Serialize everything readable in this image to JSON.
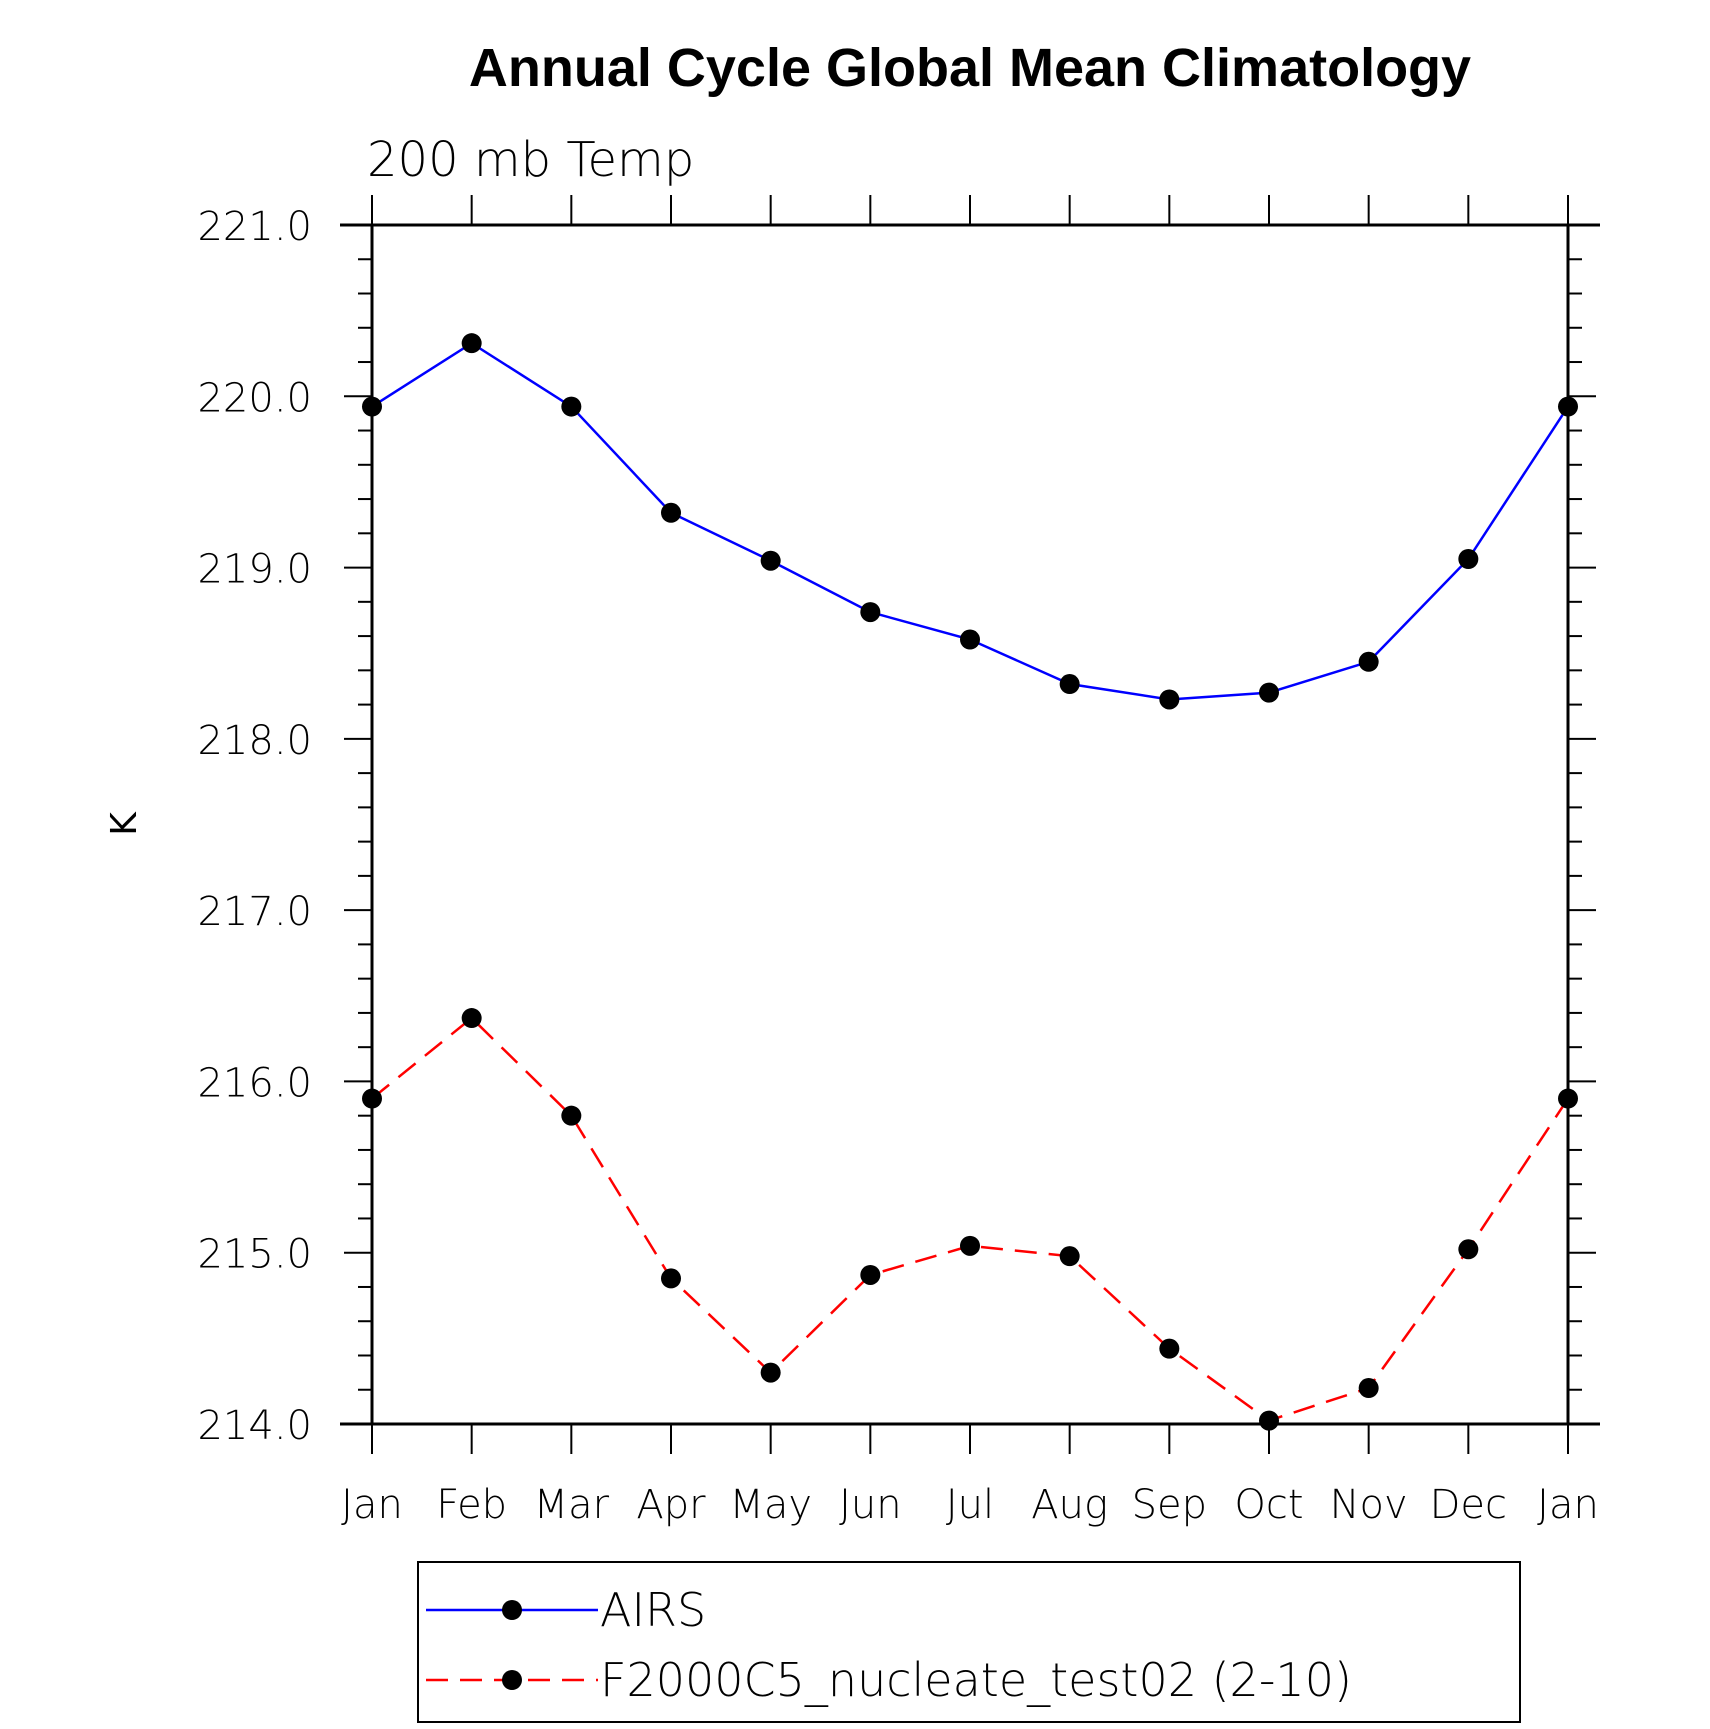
{
  "chart_data": {
    "type": "line",
    "title": "Annual Cycle Global Mean Climatology",
    "subtitle": "200 mb Temp",
    "xlabel": "",
    "ylabel": "K",
    "categories": [
      "Jan",
      "Feb",
      "Mar",
      "Apr",
      "May",
      "Jun",
      "Jul",
      "Aug",
      "Sep",
      "Oct",
      "Nov",
      "Dec",
      "Jan"
    ],
    "ylim": [
      214.0,
      221.0
    ],
    "yticks": [
      "214.0",
      "215.0",
      "216.0",
      "217.0",
      "218.0",
      "219.0",
      "220.0",
      "221.0"
    ],
    "grid": false,
    "legend_position": "bottom",
    "series": [
      {
        "name": "AIRS",
        "color": "#0000ff",
        "dash": "solid",
        "marker": "filled-circle",
        "values": [
          219.94,
          220.31,
          219.94,
          219.32,
          219.04,
          218.74,
          218.58,
          218.32,
          218.23,
          218.27,
          218.45,
          219.05,
          219.94
        ]
      },
      {
        "name": "F2000C5_nucleate_test02 (2-10)",
        "color": "#ff0000",
        "dash": "dashed",
        "marker": "filled-circle",
        "values": [
          215.9,
          216.37,
          215.8,
          214.85,
          214.3,
          214.87,
          215.04,
          214.98,
          214.44,
          214.02,
          214.21,
          215.02,
          215.9
        ]
      }
    ]
  }
}
